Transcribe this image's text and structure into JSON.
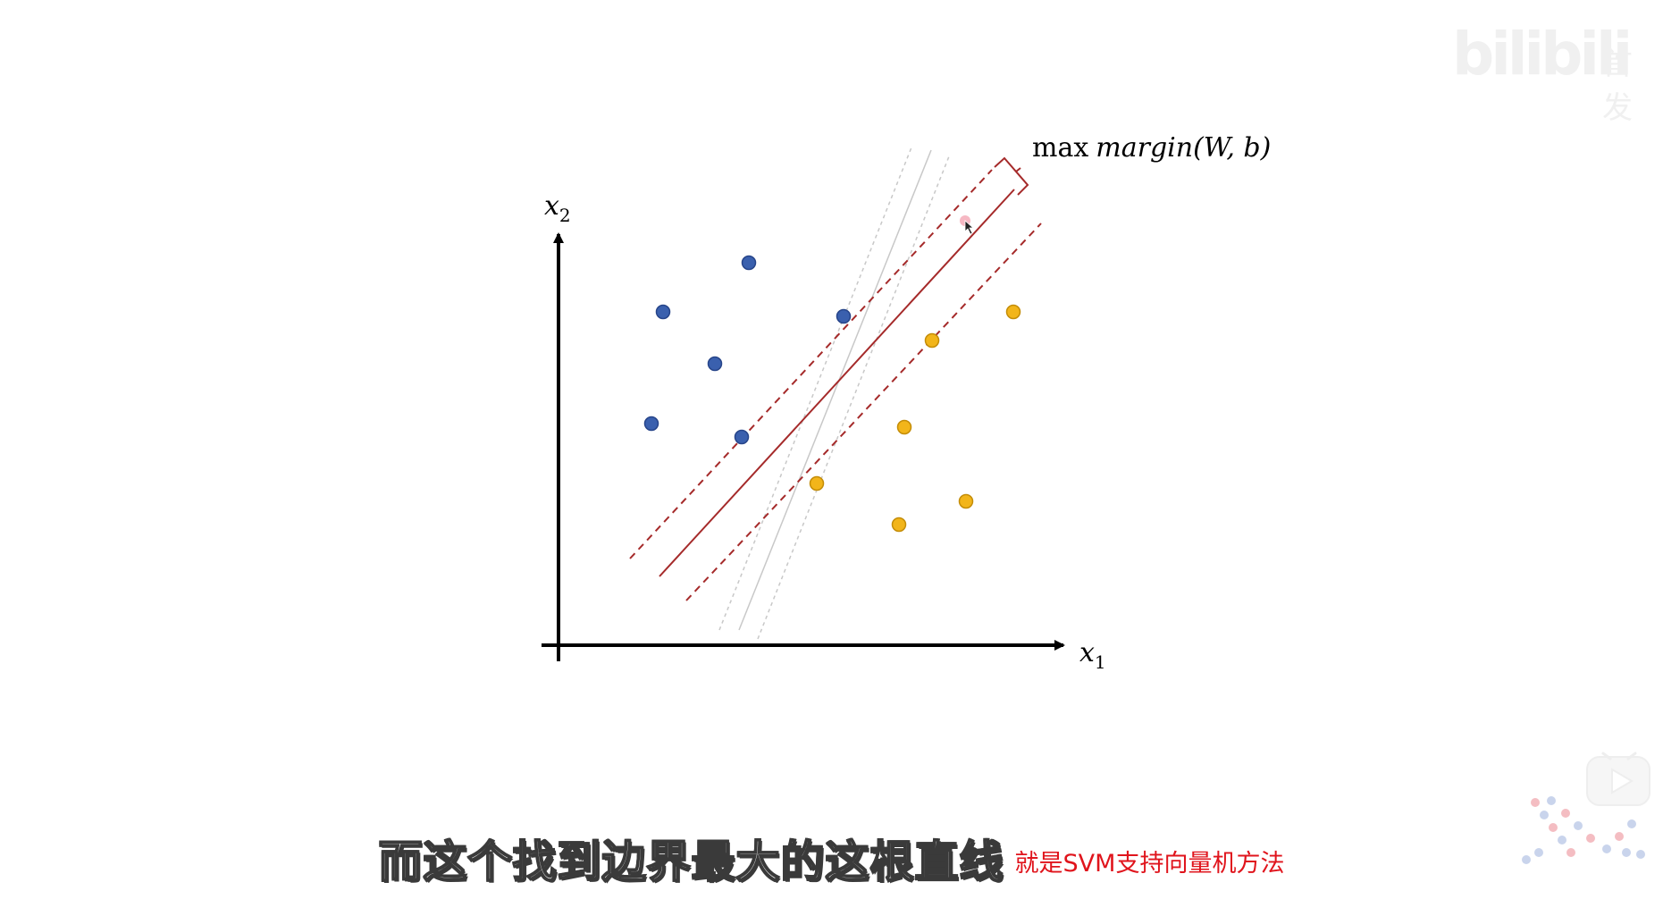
{
  "diagram": {
    "y_axis_label": "x",
    "y_axis_subscript": "2",
    "x_axis_label": "x",
    "x_axis_subscript": "1",
    "margin_label_prefix": "max",
    "margin_label_func": "margin",
    "margin_label_args": "(W, b)",
    "colors": {
      "class_a": "#3a60ae",
      "class_a_edge": "#27458a",
      "class_b": "#f2b51a",
      "class_b_edge": "#c48d08",
      "boundary": "#a52a2a",
      "alt_lines": "#c4c4c4",
      "axis": "#000000"
    }
  },
  "subtitle": {
    "main": "而这个找到边界最大的这根直线",
    "note": "就是SVM支持向量机方法"
  },
  "watermark": {
    "brand": "bilibili",
    "suffix": "首发"
  },
  "icons": {
    "cursor": "mouse-pointer-icon",
    "logo": "dots-logo-icon",
    "player": "play-icon"
  }
}
